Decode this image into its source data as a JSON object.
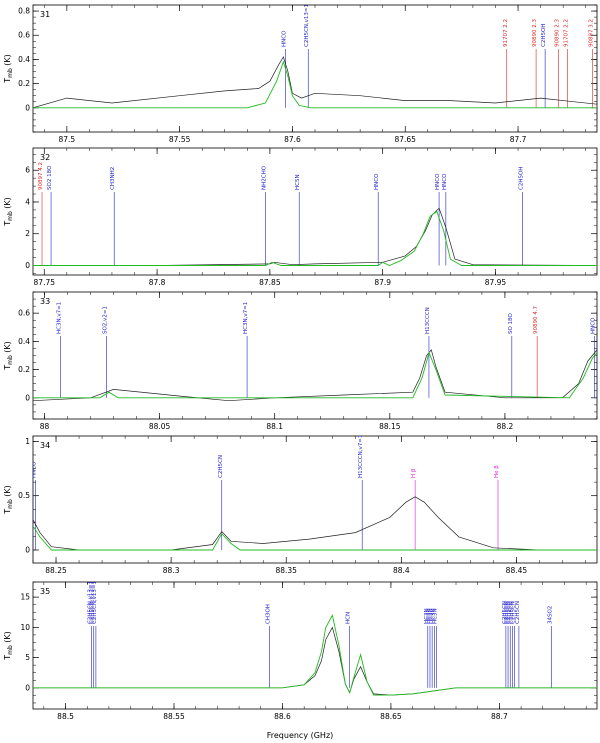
{
  "figure": {
    "xlabel": "Frequency (GHz)",
    "ylabel_main": "T",
    "ylabel_sub": "mb",
    "ylabel_unit": "(K)"
  },
  "colors": {
    "observed": "#222222",
    "model": "#22bb22",
    "line_blue": "#2222cc",
    "line_red": "#dd2222",
    "line_magenta": "#dd22dd"
  },
  "chart_data": [
    {
      "type": "line",
      "panel_label": "31",
      "xlim": [
        87.485,
        87.735
      ],
      "ylim": [
        -0.2,
        0.85
      ],
      "xticks": [
        87.5,
        87.55,
        87.6,
        87.65,
        87.7
      ],
      "yticks": [
        0,
        0.2,
        0.4,
        0.6,
        0.8
      ],
      "series": [
        {
          "kind": "observed",
          "x": [
            87.485,
            87.5,
            87.52,
            87.55,
            87.57,
            87.585,
            87.59,
            87.594,
            87.596,
            87.598,
            87.6,
            87.604,
            87.61,
            87.63,
            87.65,
            87.67,
            87.69,
            87.71,
            87.725,
            87.735
          ],
          "y": [
            0.0,
            0.08,
            0.04,
            0.1,
            0.14,
            0.16,
            0.22,
            0.36,
            0.42,
            0.3,
            0.12,
            0.08,
            0.12,
            0.1,
            0.06,
            0.06,
            0.04,
            0.08,
            0.05,
            0.03
          ]
        },
        {
          "kind": "model",
          "x": [
            87.485,
            87.58,
            87.588,
            87.593,
            87.596,
            87.598,
            87.6,
            87.603,
            87.608,
            87.65,
            87.735
          ],
          "y": [
            0.0,
            0.0,
            0.04,
            0.22,
            0.38,
            0.26,
            0.1,
            0.02,
            0.0,
            0.0,
            0.0
          ]
        }
      ],
      "lines": [
        {
          "label": "HNCO",
          "x": 87.597,
          "color": "blue"
        },
        {
          "label": "C2H5CN,v13=1",
          "x": 87.607,
          "color": "blue"
        },
        {
          "label": "C2H5OH",
          "x": 87.712,
          "color": "blue"
        },
        {
          "label": "91707 2.2",
          "x": 87.695,
          "color": "red"
        },
        {
          "label": "90890 2.3",
          "x": 87.708,
          "color": "red"
        },
        {
          "label": "90890 2.3",
          "x": 87.718,
          "color": "red"
        },
        {
          "label": "91707 2.2",
          "x": 87.722,
          "color": "red"
        },
        {
          "label": "90897 3.2",
          "x": 87.733,
          "color": "red"
        }
      ]
    },
    {
      "type": "line",
      "panel_label": "32",
      "xlim": [
        87.745,
        87.995
      ],
      "ylim": [
        -0.6,
        7.4
      ],
      "xticks": [
        87.75,
        87.8,
        87.85,
        87.9,
        87.95
      ],
      "yticks": [
        0,
        2,
        4,
        6
      ],
      "series": [
        {
          "kind": "observed",
          "x": [
            87.745,
            87.8,
            87.85,
            87.852,
            87.86,
            87.87,
            87.9,
            87.91,
            87.915,
            87.919,
            87.922,
            87.925,
            87.928,
            87.932,
            87.94,
            87.995
          ],
          "y": [
            0.0,
            0.0,
            0.1,
            0.2,
            0.05,
            0.1,
            0.2,
            0.6,
            1.2,
            2.2,
            3.2,
            3.6,
            2.4,
            0.4,
            0.05,
            0.0
          ]
        },
        {
          "kind": "model",
          "x": [
            87.745,
            87.848,
            87.851,
            87.855,
            87.898,
            87.9,
            87.903,
            87.908,
            87.914,
            87.918,
            87.921,
            87.924,
            87.927,
            87.93,
            87.935,
            87.995
          ],
          "y": [
            0.0,
            0.0,
            0.2,
            0.0,
            0.0,
            0.2,
            0.0,
            0.3,
            0.9,
            2.0,
            3.1,
            3.4,
            2.2,
            0.4,
            0.0,
            0.0
          ]
        }
      ],
      "lines": [
        {
          "label": "90897 4.2",
          "x": 87.749,
          "color": "red"
        },
        {
          "label": "SO2 18O",
          "x": 87.753,
          "color": "blue"
        },
        {
          "label": "CH3NH2",
          "x": 87.781,
          "color": "blue"
        },
        {
          "label": "NH2CHO",
          "x": 87.848,
          "color": "blue"
        },
        {
          "label": "HC5N",
          "x": 87.863,
          "color": "blue"
        },
        {
          "label": "HNCO",
          "x": 87.898,
          "color": "blue"
        },
        {
          "label": "HNCO",
          "x": 87.925,
          "color": "blue"
        },
        {
          "label": "HNCO",
          "x": 87.928,
          "color": "blue"
        },
        {
          "label": "C2H5OH",
          "x": 87.962,
          "color": "blue"
        }
      ]
    },
    {
      "type": "line",
      "panel_label": "33",
      "xlim": [
        87.995,
        88.24
      ],
      "ylim": [
        -0.15,
        0.75
      ],
      "xticks": [
        88.0,
        88.05,
        88.1,
        88.15,
        88.2
      ],
      "yticks": [
        0,
        0.2,
        0.4,
        0.6
      ],
      "series": [
        {
          "kind": "observed",
          "x": [
            87.995,
            88.02,
            88.03,
            88.06,
            88.08,
            88.1,
            88.13,
            88.16,
            88.163,
            88.166,
            88.168,
            88.17,
            88.174,
            88.2,
            88.225,
            88.232,
            88.236,
            88.24
          ],
          "y": [
            -0.02,
            0.0,
            0.06,
            0.01,
            -0.02,
            0.0,
            0.02,
            0.04,
            0.14,
            0.3,
            0.34,
            0.22,
            0.04,
            0.0,
            0.0,
            0.1,
            0.26,
            0.34
          ]
        },
        {
          "kind": "model",
          "x": [
            87.995,
            88.024,
            88.028,
            88.032,
            88.16,
            88.164,
            88.167,
            88.17,
            88.174,
            88.228,
            88.234,
            88.238,
            88.24
          ],
          "y": [
            0.0,
            0.0,
            0.04,
            0.0,
            0.0,
            0.14,
            0.32,
            0.2,
            0.02,
            0.0,
            0.14,
            0.28,
            0.32
          ]
        }
      ],
      "lines": [
        {
          "label": "HC3N,v7=1",
          "x": 88.007,
          "color": "blue"
        },
        {
          "label": "SO2,v2=1",
          "x": 88.027,
          "color": "blue"
        },
        {
          "label": "HC3N,v7=1",
          "x": 88.088,
          "color": "blue"
        },
        {
          "label": "H13CCCN",
          "x": 88.167,
          "color": "blue"
        },
        {
          "label": "SO 18O",
          "x": 88.203,
          "color": "blue"
        },
        {
          "label": "90890 4.7",
          "x": 88.214,
          "color": "red"
        },
        {
          "label": "HNCO",
          "x": 88.239,
          "color": "blue"
        }
      ]
    },
    {
      "type": "line",
      "panel_label": "34",
      "xlim": [
        88.24,
        88.485
      ],
      "ylim": [
        -0.12,
        1.05
      ],
      "xticks": [
        88.25,
        88.3,
        88.35,
        88.4,
        88.45
      ],
      "yticks": [
        0,
        0.5,
        1
      ],
      "series": [
        {
          "kind": "observed",
          "x": [
            88.24,
            88.243,
            88.248,
            88.26,
            88.3,
            88.318,
            88.322,
            88.326,
            88.34,
            88.36,
            88.38,
            88.395,
            88.402,
            88.406,
            88.41,
            88.416,
            88.425,
            88.44,
            88.46,
            88.485
          ],
          "y": [
            0.28,
            0.16,
            0.03,
            0.0,
            0.0,
            0.05,
            0.17,
            0.08,
            0.06,
            0.1,
            0.16,
            0.3,
            0.44,
            0.49,
            0.44,
            0.3,
            0.12,
            0.02,
            0.0,
            0.0
          ]
        },
        {
          "kind": "model",
          "x": [
            88.24,
            88.243,
            88.248,
            88.318,
            88.322,
            88.326,
            88.33,
            88.485
          ],
          "y": [
            0.22,
            0.12,
            0.0,
            0.0,
            0.15,
            0.06,
            0.0,
            0.0
          ]
        }
      ],
      "lines": [
        {
          "label": "HNCO",
          "x": 88.241,
          "color": "blue"
        },
        {
          "label": "C2H5CN",
          "x": 88.322,
          "color": "blue"
        },
        {
          "label": "H13CCCN,v7=1",
          "x": 88.383,
          "color": "blue"
        },
        {
          "label": "H β",
          "x": 88.406,
          "color": "magenta"
        },
        {
          "label": "He β",
          "x": 88.442,
          "color": "magenta"
        }
      ]
    },
    {
      "type": "line",
      "panel_label": "35",
      "xlim": [
        88.485,
        88.745
      ],
      "ylim": [
        -3.5,
        17.5
      ],
      "xticks": [
        88.5,
        88.55,
        88.6,
        88.65,
        88.7
      ],
      "yticks": [
        0,
        5,
        10,
        15
      ],
      "series": [
        {
          "kind": "observed",
          "x": [
            88.485,
            88.6,
            88.61,
            88.615,
            88.618,
            88.62,
            88.623,
            88.626,
            88.629,
            88.631,
            88.633,
            88.636,
            88.639,
            88.642,
            88.65,
            88.66,
            88.68,
            88.7,
            88.72,
            88.745
          ],
          "y": [
            0.0,
            0.0,
            0.5,
            2.0,
            4.5,
            8.0,
            10.0,
            6.0,
            0.6,
            -0.8,
            1.5,
            3.5,
            1.0,
            -1.0,
            -1.2,
            -1.0,
            0.0,
            0.0,
            0.0,
            0.0
          ]
        },
        {
          "kind": "model",
          "x": [
            88.485,
            88.6,
            88.61,
            88.615,
            88.618,
            88.62,
            88.623,
            88.626,
            88.629,
            88.631,
            88.633,
            88.636,
            88.639,
            88.642,
            88.65,
            88.66,
            88.68,
            88.7,
            88.72,
            88.745
          ],
          "y": [
            0.0,
            0.0,
            0.5,
            2.5,
            6.0,
            10.0,
            12.0,
            7.0,
            0.6,
            -0.8,
            1.8,
            5.5,
            1.0,
            -1.2,
            -1.2,
            -1.0,
            0.0,
            0.0,
            0.0,
            0.0
          ]
        }
      ],
      "lines": [
        {
          "label": "C2H5CN,v13=1",
          "x": 88.512,
          "color": "blue"
        },
        {
          "label": "C2H5CN,v13=1",
          "x": 88.513,
          "color": "blue"
        },
        {
          "label": "C2H5CN,v13=1",
          "x": 88.514,
          "color": "blue"
        },
        {
          "label": "CH3OH",
          "x": 88.594,
          "color": "blue"
        },
        {
          "label": "HCN",
          "x": 88.631,
          "color": "blue"
        },
        {
          "label": "HC3N",
          "x": 88.667,
          "color": "blue"
        },
        {
          "label": "HC3N",
          "x": 88.668,
          "color": "blue"
        },
        {
          "label": "HC3N",
          "x": 88.669,
          "color": "blue"
        },
        {
          "label": "HC3N",
          "x": 88.67,
          "color": "blue"
        },
        {
          "label": "HC3N",
          "x": 88.671,
          "color": "blue"
        },
        {
          "label": "C2H5CN",
          "x": 88.703,
          "color": "blue"
        },
        {
          "label": "C2H5CN",
          "x": 88.704,
          "color": "blue"
        },
        {
          "label": "C2H5CN",
          "x": 88.705,
          "color": "blue"
        },
        {
          "label": "C2H5CN",
          "x": 88.706,
          "color": "blue"
        },
        {
          "label": "C2H5CN",
          "x": 88.707,
          "color": "blue"
        },
        {
          "label": "C2H5CN",
          "x": 88.709,
          "color": "blue"
        },
        {
          "label": "34SO2",
          "x": 88.724,
          "color": "blue"
        }
      ]
    }
  ]
}
